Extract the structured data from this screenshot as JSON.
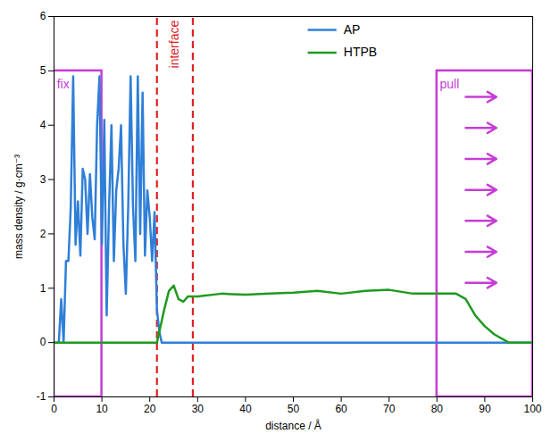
{
  "chart_data": {
    "type": "line",
    "x_label": "distance / Å",
    "y_label": "mass density / g·cm⁻³",
    "xlim": [
      0,
      100
    ],
    "ylim": [
      -1,
      6
    ],
    "xticks": [
      0,
      10,
      20,
      30,
      40,
      50,
      60,
      70,
      80,
      90,
      100
    ],
    "yticks": [
      -1,
      0,
      1,
      2,
      3,
      4,
      5,
      6
    ],
    "legend": "top",
    "series": [
      {
        "name": "AP",
        "color": "#2f7fd8",
        "x": [
          0,
          1,
          1.5,
          2,
          2.5,
          3,
          3.5,
          4,
          4.5,
          5,
          5.5,
          6,
          6.5,
          7,
          7.5,
          8,
          8.5,
          9,
          9.5,
          10,
          10.5,
          11,
          11.5,
          12,
          12.5,
          13,
          13.5,
          14,
          14.5,
          15,
          15.5,
          16,
          16.5,
          17,
          17.5,
          18,
          18.5,
          19,
          19.5,
          20,
          20.5,
          21,
          21.5,
          22,
          22.5,
          30,
          100
        ],
        "values": [
          0,
          0,
          0.8,
          0,
          1.5,
          1.5,
          2.5,
          4.9,
          1.8,
          2.6,
          1.6,
          3.2,
          3.0,
          2.0,
          3.1,
          2.3,
          1.9,
          4.0,
          4.9,
          1.8,
          4.1,
          0.5,
          2.5,
          4.0,
          1.5,
          2.8,
          3.2,
          4.0,
          1.8,
          0.9,
          2.5,
          4.9,
          2.5,
          1.5,
          4.9,
          2.0,
          4.6,
          1.6,
          2.8,
          2.3,
          1.5,
          2.4,
          0.6,
          0.2,
          0,
          0,
          0
        ]
      },
      {
        "name": "HTPB",
        "color": "#1f9a1f",
        "x": [
          0,
          21.5,
          22,
          23,
          24,
          25,
          26,
          27,
          28,
          30,
          35,
          40,
          45,
          50,
          55,
          60,
          65,
          70,
          75,
          80,
          84,
          86,
          88,
          90,
          92,
          94,
          95,
          100
        ],
        "values": [
          0,
          0,
          0.2,
          0.6,
          0.95,
          1.05,
          0.8,
          0.75,
          0.85,
          0.85,
          0.9,
          0.88,
          0.9,
          0.92,
          0.95,
          0.9,
          0.95,
          0.97,
          0.9,
          0.9,
          0.9,
          0.8,
          0.5,
          0.3,
          0.15,
          0.05,
          0,
          0
        ]
      }
    ],
    "regions": [
      {
        "label": "fix",
        "x": [
          0,
          10
        ],
        "y": [
          -1,
          5
        ],
        "color": "#c63cd6",
        "line_style": "solid"
      },
      {
        "label": "interface",
        "x": [
          21.5,
          29
        ],
        "y": [
          -1,
          6
        ],
        "color": "#e02020",
        "line_style": "dashed"
      },
      {
        "label": "pull",
        "x": [
          80,
          100
        ],
        "y": [
          -1,
          5
        ],
        "color": "#c63cd6",
        "line_style": "solid"
      }
    ]
  }
}
